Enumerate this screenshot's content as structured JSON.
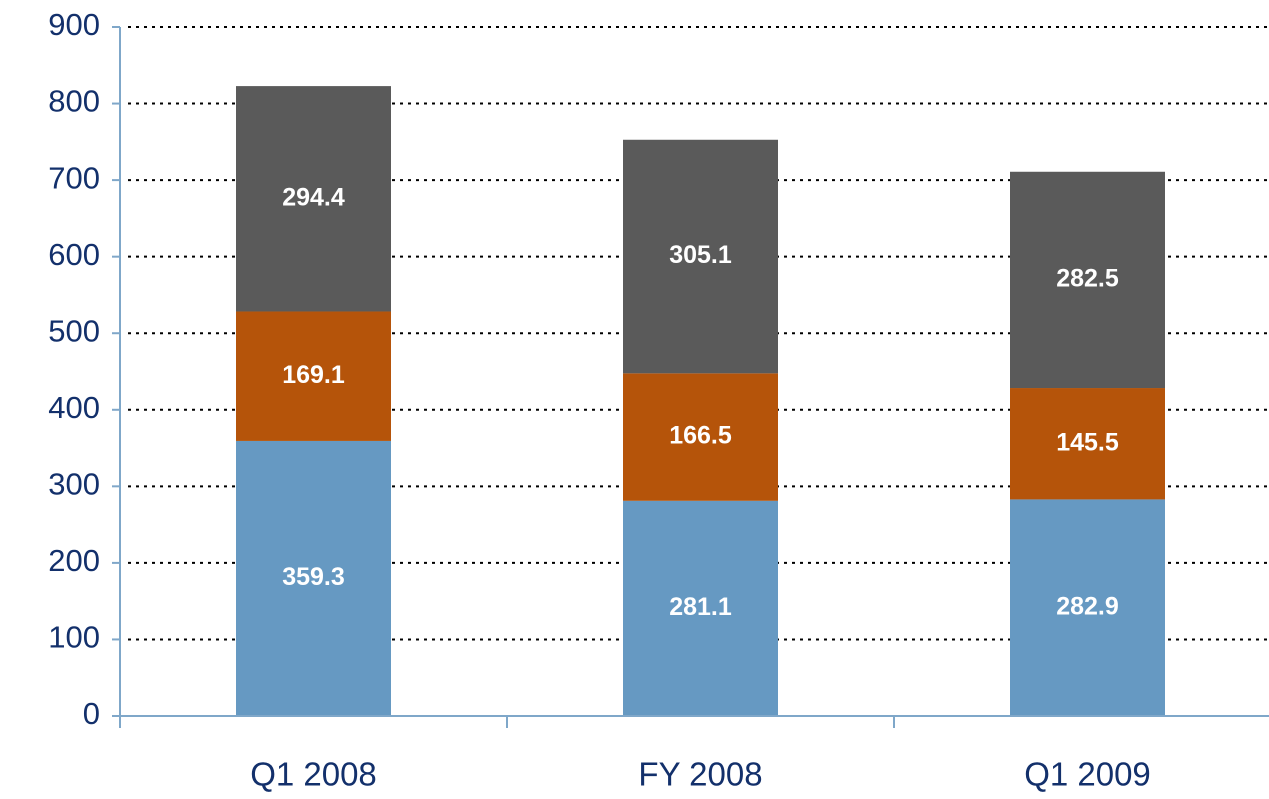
{
  "chart_data": {
    "type": "stacked_bar",
    "categories": [
      "Q1 2008",
      "FY 2008",
      "Q1 2009"
    ],
    "series": [
      {
        "color": "#6699c2",
        "values": [
          359.3,
          281.1,
          282.9
        ]
      },
      {
        "color": "#b5540a",
        "values": [
          169.1,
          166.5,
          145.5
        ]
      },
      {
        "color": "#5a5a5a",
        "values": [
          294.4,
          305.1,
          282.5
        ]
      }
    ],
    "ylim": [
      0,
      900
    ],
    "yticks": [
      0,
      100,
      200,
      300,
      400,
      500,
      600,
      700,
      800,
      900
    ],
    "grid": true
  }
}
